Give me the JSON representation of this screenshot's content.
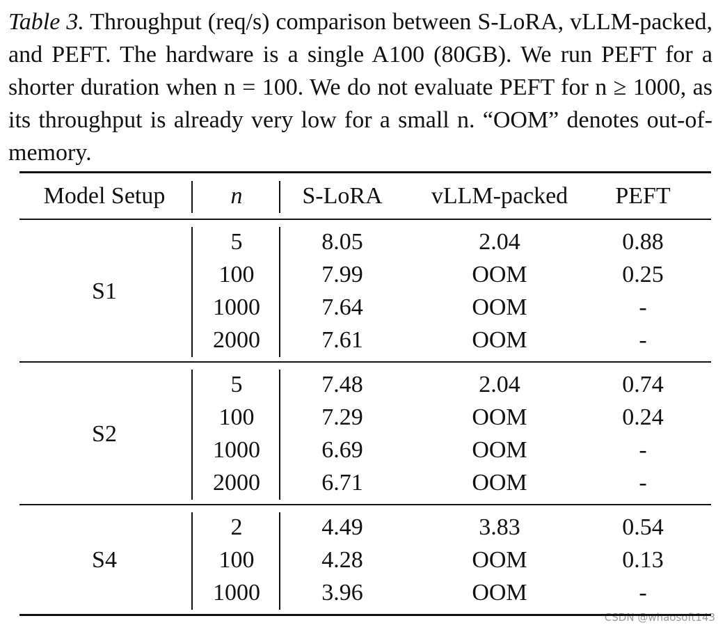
{
  "caption": {
    "label": "Table 3.",
    "text": "Throughput (req/s) comparison between S-LoRA, vLLM-packed, and PEFT. The hardware is a single A100 (80GB). We run PEFT for a shorter duration when n = 100. We do not evaluate PEFT for n ≥ 1000, as its throughput is already very low for a small n. “OOM” denotes out-of-memory."
  },
  "table": {
    "header": [
      "Model Setup",
      "n",
      "S-LoRA",
      "vLLM-packed",
      "PEFT"
    ],
    "groups": [
      {
        "setup": "S1",
        "rows": [
          [
            "5",
            "8.05",
            "2.04",
            "0.88"
          ],
          [
            "100",
            "7.99",
            "OOM",
            "0.25"
          ],
          [
            "1000",
            "7.64",
            "OOM",
            "-"
          ],
          [
            "2000",
            "7.61",
            "OOM",
            "-"
          ]
        ]
      },
      {
        "setup": "S2",
        "rows": [
          [
            "5",
            "7.48",
            "2.04",
            "0.74"
          ],
          [
            "100",
            "7.29",
            "OOM",
            "0.24"
          ],
          [
            "1000",
            "6.69",
            "OOM",
            "-"
          ],
          [
            "2000",
            "6.71",
            "OOM",
            "-"
          ]
        ]
      },
      {
        "setup": "S4",
        "rows": [
          [
            "2",
            "4.49",
            "3.83",
            "0.54"
          ],
          [
            "100",
            "4.28",
            "OOM",
            "0.13"
          ],
          [
            "1000",
            "3.96",
            "OOM",
            "-"
          ]
        ]
      }
    ]
  },
  "watermark": "CSDN @whaosoft143"
}
